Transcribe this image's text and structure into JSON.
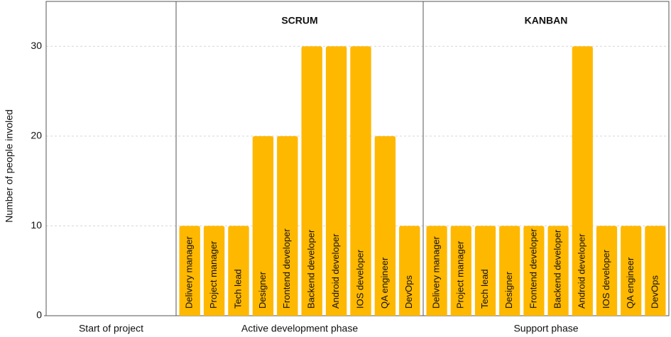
{
  "chart_data": {
    "type": "bar",
    "y_label": "Number of people involed",
    "ylim": [
      0,
      35
    ],
    "yticks": [
      0,
      10,
      20,
      30
    ],
    "grid": true,
    "color": "#ffb800",
    "phases": [
      {
        "label": "Start of project"
      },
      {
        "label": "Active development phase",
        "method": "SCRUM",
        "categories": [
          "Delivery manager",
          "Project manager",
          "Tech lead",
          "Designer",
          "Frontend developer",
          "Backend developer",
          "Android developer",
          "IOS developer",
          "QA engineer",
          "DevOps"
        ],
        "values": [
          10,
          10,
          10,
          20,
          20,
          30,
          30,
          30,
          20,
          10
        ]
      },
      {
        "label": "Support phase",
        "method": "KANBAN",
        "categories": [
          "Delivery manager",
          "Project manager",
          "Tech lead",
          "Designer",
          "Frontend developer",
          "Backend developer",
          "Android developer",
          "IOS developer",
          "QA engineer",
          "DevOps"
        ],
        "values": [
          10,
          10,
          10,
          10,
          10,
          10,
          30,
          10,
          10,
          10
        ]
      }
    ]
  }
}
